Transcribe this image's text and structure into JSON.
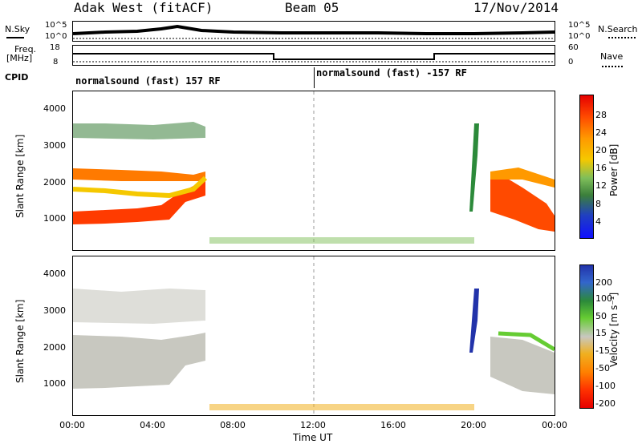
{
  "header": {
    "station": "Adak West (fitACF)",
    "beam": "Beam 05",
    "date": "17/Nov/2014"
  },
  "top_panels": {
    "nsky_label": "N.Sky",
    "nsky_ticks": [
      "10^5",
      "10^0"
    ],
    "nsearch_label": "N.Search",
    "nsearch_ticks": [
      "10^5",
      "10^0"
    ],
    "freq_label": "Freq.",
    "freq_unit": "[MHz]",
    "freq_ticks": [
      "18",
      "8"
    ],
    "nave_label": "Nave",
    "nave_ticks": [
      "60",
      "0"
    ],
    "cpid_label": "CPID",
    "cpid_left": "normalsound (fast) 157 RF",
    "cpid_right": "normalsound (fast) -157 RF"
  },
  "chart_data": [
    {
      "type": "heatmap",
      "name": "power",
      "ylabel": "Slant Range [km]",
      "xlabel": "Time UT",
      "yticks": [
        "4000",
        "3000",
        "2000",
        "1000"
      ],
      "xticks": [
        "00:00",
        "04:00",
        "08:00",
        "12:00",
        "16:00",
        "20:00",
        "00:00"
      ],
      "colorbar_title": "Power [dB]",
      "colorbar_ticks": [
        "28",
        "24",
        "20",
        "16",
        "12",
        "8",
        "4"
      ],
      "colorbar_colors": [
        "#e60000",
        "#ff4a00",
        "#ff9900",
        "#f5c800",
        "#7fbf5a",
        "#3b7f3b",
        "#2040c0",
        "#1010ff"
      ],
      "ylim": [
        180,
        4600
      ]
    },
    {
      "type": "heatmap",
      "name": "velocity",
      "ylabel": "Slant Range [km]",
      "xlabel": "Time UT",
      "yticks": [
        "4000",
        "3000",
        "2000",
        "1000"
      ],
      "xticks": [
        "00:00",
        "04:00",
        "08:00",
        "12:00",
        "16:00",
        "20:00",
        "00:00"
      ],
      "colorbar_title": "Velocity [m s⁻¹]",
      "colorbar_ticks": [
        "200",
        "100",
        "50",
        "15",
        "-15",
        "-50",
        "-100",
        "-200"
      ],
      "colorbar_colors": [
        "#2233aa",
        "#3366cc",
        "#2c8a3a",
        "#66cc33",
        "#c8c8c0",
        "#f0b020",
        "#ff8000",
        "#ff3300",
        "#e60000"
      ],
      "ylim": [
        180,
        4600
      ]
    }
  ],
  "axis": {
    "time_label": "Time UT"
  }
}
